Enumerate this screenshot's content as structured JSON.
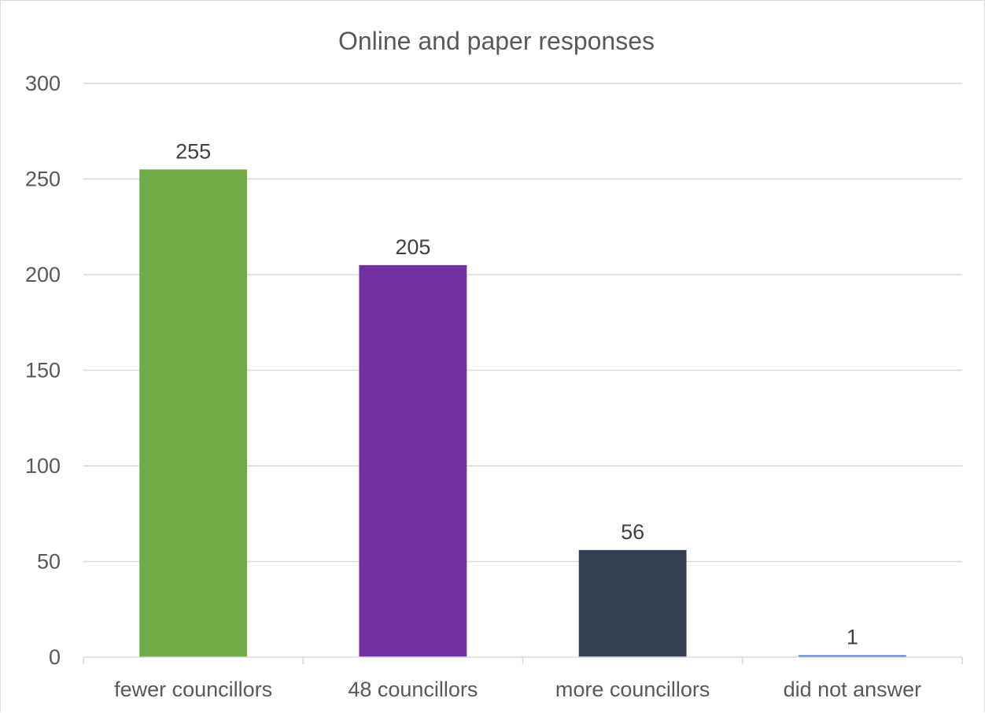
{
  "chart_data": {
    "type": "bar",
    "title": "Online and paper responses",
    "xlabel": "",
    "ylabel": "",
    "categories": [
      "fewer councillors",
      "48 councillors",
      "more councillors",
      "did not answer"
    ],
    "values": [
      255,
      205,
      56,
      1
    ],
    "data_labels": [
      "255",
      "205",
      "56",
      "1"
    ],
    "bar_colors": [
      "#70ad47",
      "#7030a0",
      "#333f50",
      "#4472c4"
    ],
    "ylim": [
      0,
      300
    ],
    "yticks": [
      0,
      50,
      100,
      150,
      200,
      250,
      300
    ],
    "ytick_labels": [
      "0",
      "50",
      "100",
      "150",
      "200",
      "250",
      "300"
    ],
    "grid": true,
    "legend": "none"
  }
}
